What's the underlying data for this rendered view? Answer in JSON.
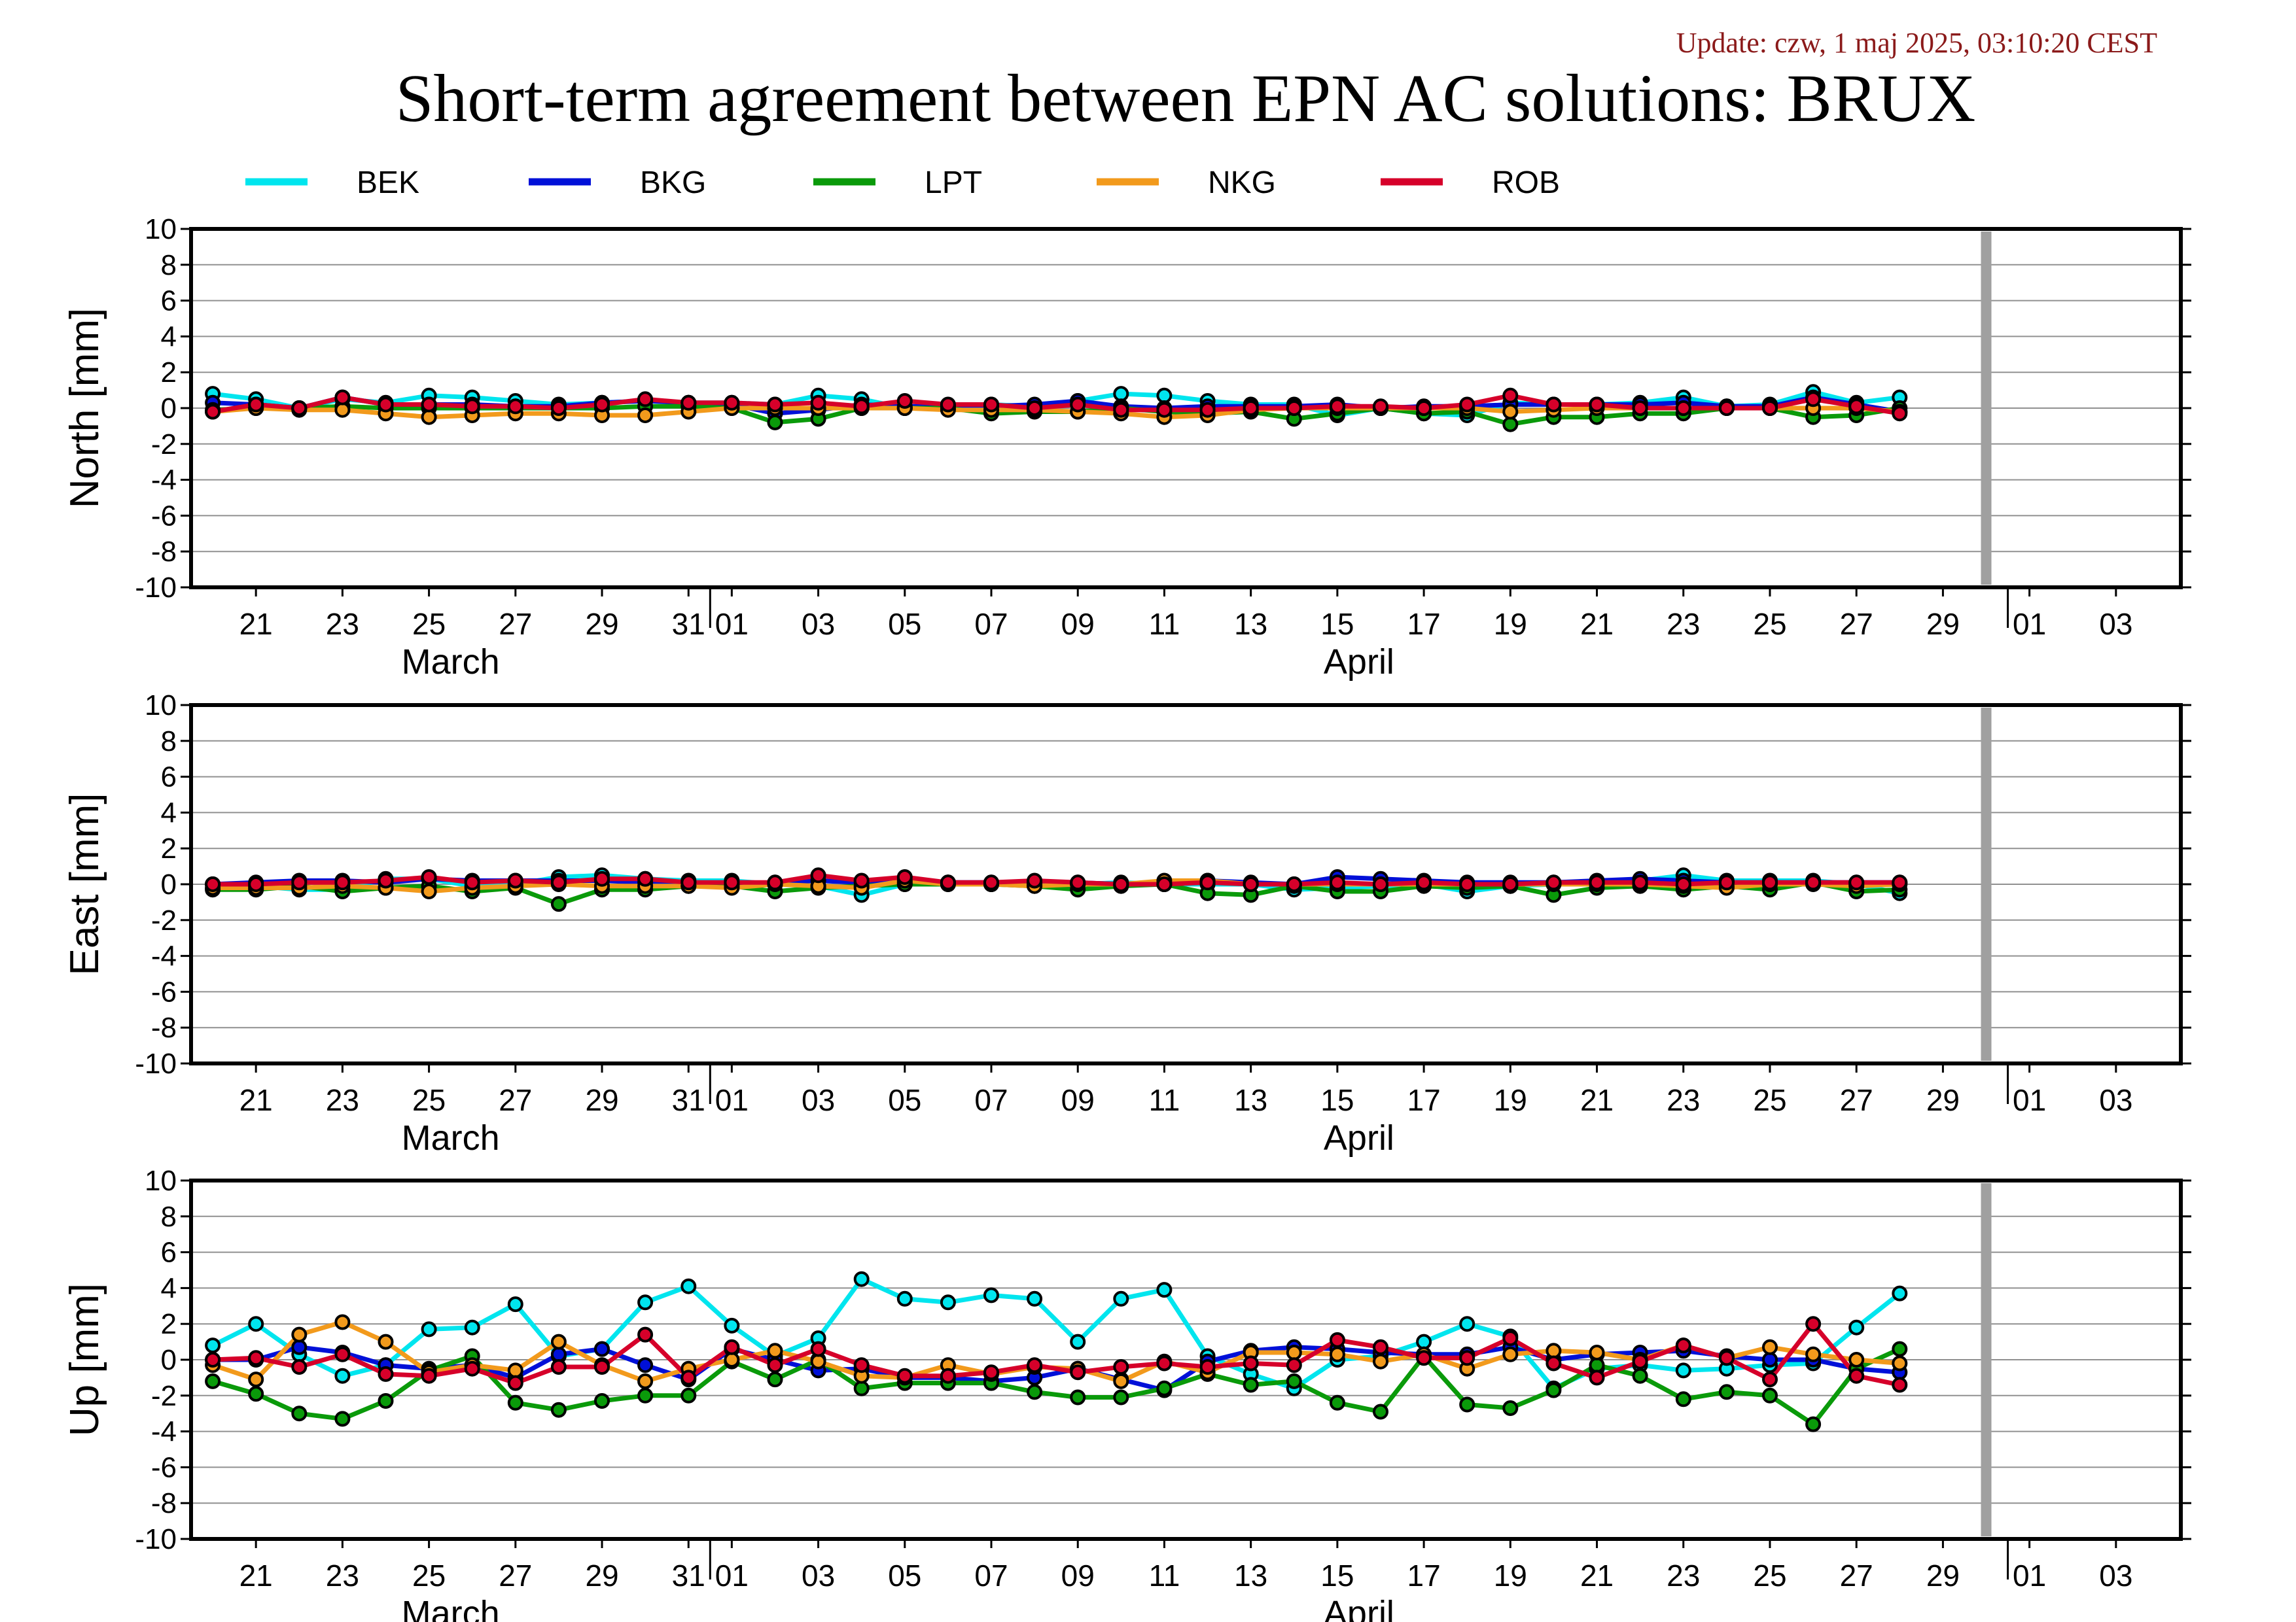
{
  "update_text": "Update: czw, 1 maj 2025, 03:10:20 CEST",
  "title": "Short-term agreement between EPN AC solutions: BRUX",
  "colors": {
    "BEK": "#00e5ee",
    "BKG": "#0010d8",
    "LPT": "#0a9a0a",
    "NKG": "#f29a1c",
    "ROB": "#d6002a",
    "update": "#8b1a1a",
    "gap_bar": "#a0a0a0"
  },
  "legend": [
    {
      "key": "BEK",
      "label": "BEK"
    },
    {
      "key": "BKG",
      "label": "BKG"
    },
    {
      "key": "LPT",
      "label": "LPT"
    },
    {
      "key": "NKG",
      "label": "NKG"
    },
    {
      "key": "ROB",
      "label": "ROB"
    }
  ],
  "x_axis": {
    "ticks": [
      {
        "label": "21",
        "day": 1
      },
      {
        "label": "23",
        "day": 3
      },
      {
        "label": "25",
        "day": 5
      },
      {
        "label": "27",
        "day": 7
      },
      {
        "label": "29",
        "day": 9
      },
      {
        "label": "31",
        "day": 11
      },
      {
        "label": "01",
        "day": 12
      },
      {
        "label": "03",
        "day": 14
      },
      {
        "label": "05",
        "day": 16
      },
      {
        "label": "07",
        "day": 18
      },
      {
        "label": "09",
        "day": 20
      },
      {
        "label": "11",
        "day": 22
      },
      {
        "label": "13",
        "day": 24
      },
      {
        "label": "15",
        "day": 26
      },
      {
        "label": "17",
        "day": 28
      },
      {
        "label": "19",
        "day": 30
      },
      {
        "label": "21",
        "day": 32
      },
      {
        "label": "23",
        "day": 34
      },
      {
        "label": "25",
        "day": 36
      },
      {
        "label": "27",
        "day": 38
      },
      {
        "label": "29",
        "day": 40
      },
      {
        "label": "01",
        "day": 42
      },
      {
        "label": "03",
        "day": 44
      }
    ],
    "months": [
      {
        "label": "March",
        "day": 5.5
      },
      {
        "label": "April",
        "day": 26.5
      }
    ],
    "month_boundaries": [
      11.5,
      41.5
    ],
    "range": [
      -0.5,
      45.5
    ],
    "gap_day": 41
  },
  "chart_data": [
    {
      "type": "line",
      "ylabel": "North [mm]",
      "ylim": [
        -10,
        10
      ],
      "yticks": [
        10,
        8,
        6,
        4,
        2,
        0,
        -2,
        -4,
        -6,
        -8,
        -10
      ],
      "grid": true,
      "x": [
        0,
        1,
        2,
        3,
        4,
        5,
        6,
        7,
        8,
        9,
        10,
        11,
        12,
        13,
        14,
        15,
        16,
        17,
        18,
        19,
        20,
        21,
        22,
        23,
        24,
        25,
        26,
        27,
        28,
        29,
        30,
        31,
        32,
        33,
        34,
        35,
        36,
        37,
        38,
        39,
        40
      ],
      "series": [
        {
          "name": "BEK",
          "values": [
            0.8,
            0.5,
            0.0,
            0.5,
            0.3,
            0.7,
            0.6,
            0.4,
            0.2,
            0.3,
            0.4,
            0.3,
            0.3,
            0.2,
            0.7,
            0.5,
            0.0,
            0.1,
            0.2,
            0.1,
            0.4,
            0.8,
            0.7,
            0.4,
            0.2,
            0.2,
            -0.4,
            0.0,
            -0.3,
            -0.4,
            0.3,
            0.2,
            0.2,
            0.3,
            0.6,
            0.1,
            0.2,
            0.9,
            0.3,
            0.6,
            null
          ]
        },
        {
          "name": "BKG",
          "values": [
            0.3,
            0.2,
            0.0,
            0.6,
            0.2,
            0.2,
            0.2,
            0.1,
            0.1,
            0.3,
            0.4,
            0.3,
            0.2,
            -0.3,
            -0.1,
            0.2,
            0.1,
            0.1,
            0.1,
            0.2,
            0.4,
            0.1,
            0.0,
            0.1,
            0.1,
            0.1,
            0.2,
            0.0,
            0.1,
            0.1,
            0.2,
            0.2,
            0.2,
            0.2,
            0.3,
            0.1,
            0.1,
            0.6,
            0.2,
            -0.2,
            null
          ]
        },
        {
          "name": "LPT",
          "values": [
            -0.1,
            0.0,
            0.0,
            0.1,
            0.0,
            0.0,
            0.0,
            0.0,
            0.0,
            0.0,
            0.1,
            0.1,
            0.0,
            -0.8,
            -0.6,
            0.0,
            0.0,
            0.0,
            -0.3,
            -0.2,
            -0.2,
            0.0,
            -0.2,
            -0.3,
            -0.2,
            -0.6,
            -0.3,
            0.0,
            -0.3,
            -0.2,
            -0.9,
            -0.5,
            -0.5,
            -0.3,
            -0.3,
            0.0,
            0.0,
            -0.5,
            -0.4,
            0.0,
            null
          ]
        },
        {
          "name": "NKG",
          "values": [
            -0.2,
            0.0,
            -0.1,
            -0.1,
            -0.3,
            -0.5,
            -0.4,
            -0.3,
            -0.3,
            -0.4,
            -0.4,
            -0.2,
            0.0,
            0.0,
            0.0,
            0.0,
            0.0,
            -0.1,
            -0.1,
            -0.1,
            -0.2,
            -0.3,
            -0.5,
            -0.4,
            -0.1,
            0.0,
            0.0,
            0.0,
            0.0,
            0.0,
            -0.2,
            -0.1,
            0.0,
            0.0,
            0.0,
            0.0,
            0.0,
            0.0,
            0.0,
            -0.2,
            null
          ]
        },
        {
          "name": "ROB",
          "values": [
            -0.2,
            0.2,
            0.0,
            0.6,
            0.2,
            0.2,
            0.1,
            0.1,
            0.0,
            0.2,
            0.5,
            0.3,
            0.3,
            0.2,
            0.3,
            0.1,
            0.4,
            0.2,
            0.2,
            0.0,
            0.2,
            -0.1,
            -0.1,
            -0.1,
            0.0,
            0.0,
            0.1,
            0.1,
            0.0,
            0.2,
            0.7,
            0.2,
            0.2,
            0.0,
            0.0,
            0.0,
            0.0,
            0.5,
            0.1,
            -0.3,
            null
          ]
        }
      ]
    },
    {
      "type": "line",
      "ylabel": "East [mm]",
      "ylim": [
        -10,
        10
      ],
      "yticks": [
        10,
        8,
        6,
        4,
        2,
        0,
        -2,
        -4,
        -6,
        -8,
        -10
      ],
      "grid": true,
      "x": [
        0,
        1,
        2,
        3,
        4,
        5,
        6,
        7,
        8,
        9,
        10,
        11,
        12,
        13,
        14,
        15,
        16,
        17,
        18,
        19,
        20,
        21,
        22,
        23,
        24,
        25,
        26,
        27,
        28,
        29,
        30,
        31,
        32,
        33,
        34,
        35,
        36,
        37,
        38,
        39,
        40
      ],
      "series": [
        {
          "name": "BEK",
          "values": [
            0.0,
            -0.1,
            -0.3,
            -0.3,
            0.3,
            0.3,
            -0.1,
            0.0,
            0.4,
            0.5,
            0.3,
            0.2,
            0.2,
            0.0,
            -0.1,
            -0.6,
            0.0,
            0.1,
            0.0,
            0.0,
            0.0,
            0.1,
            0.0,
            0.0,
            0.0,
            -0.3,
            -0.2,
            -0.1,
            0.0,
            -0.4,
            -0.1,
            0.0,
            0.1,
            0.2,
            0.5,
            0.2,
            0.2,
            0.2,
            0.0,
            -0.5,
            null
          ]
        },
        {
          "name": "BKG",
          "values": [
            0.0,
            0.1,
            0.2,
            0.2,
            0.1,
            0.3,
            0.2,
            0.2,
            0.2,
            0.2,
            0.1,
            0.1,
            0.0,
            0.1,
            0.2,
            0.1,
            0.1,
            0.1,
            0.1,
            0.1,
            0.1,
            0.0,
            0.0,
            0.2,
            0.1,
            0.0,
            0.4,
            0.3,
            0.2,
            0.1,
            0.1,
            0.1,
            0.2,
            0.3,
            0.2,
            0.1,
            0.1,
            0.1,
            0.1,
            0.1,
            null
          ]
        },
        {
          "name": "LPT",
          "values": [
            -0.3,
            -0.3,
            -0.1,
            -0.4,
            -0.2,
            -0.1,
            -0.4,
            -0.2,
            -1.1,
            -0.3,
            -0.3,
            -0.1,
            -0.1,
            -0.4,
            -0.2,
            -0.1,
            0.0,
            0.0,
            0.0,
            -0.1,
            -0.3,
            -0.1,
            0.0,
            -0.5,
            -0.6,
            -0.1,
            -0.4,
            -0.4,
            -0.1,
            -0.2,
            -0.1,
            -0.6,
            -0.2,
            -0.1,
            -0.3,
            -0.1,
            -0.3,
            0.1,
            -0.4,
            -0.3,
            null
          ]
        },
        {
          "name": "NKG",
          "values": [
            -0.2,
            -0.2,
            -0.2,
            -0.1,
            -0.2,
            -0.4,
            -0.2,
            -0.1,
            0.0,
            -0.1,
            -0.1,
            -0.1,
            -0.2,
            0.0,
            -0.1,
            -0.2,
            0.2,
            0.0,
            0.0,
            -0.1,
            0.0,
            0.0,
            0.2,
            0.2,
            0.0,
            0.0,
            0.0,
            0.0,
            0.0,
            0.0,
            0.0,
            0.0,
            0.0,
            0.0,
            -0.1,
            -0.2,
            0.0,
            0.0,
            -0.1,
            0.0,
            null
          ]
        },
        {
          "name": "ROB",
          "values": [
            0.0,
            0.0,
            0.1,
            0.1,
            0.2,
            0.4,
            0.1,
            0.2,
            0.1,
            0.3,
            0.3,
            0.1,
            0.1,
            0.1,
            0.5,
            0.2,
            0.4,
            0.1,
            0.1,
            0.2,
            0.1,
            0.0,
            0.0,
            0.1,
            0.0,
            0.0,
            0.1,
            0.0,
            0.1,
            0.0,
            0.0,
            0.1,
            0.1,
            0.1,
            0.0,
            0.1,
            0.1,
            0.1,
            0.1,
            0.1,
            null
          ]
        }
      ]
    },
    {
      "type": "line",
      "ylabel": "Up [mm]",
      "ylim": [
        -10,
        10
      ],
      "yticks": [
        10,
        8,
        6,
        4,
        2,
        0,
        -2,
        -4,
        -6,
        -8,
        -10
      ],
      "grid": true,
      "x": [
        0,
        1,
        2,
        3,
        4,
        5,
        6,
        7,
        8,
        9,
        10,
        11,
        12,
        13,
        14,
        15,
        16,
        17,
        18,
        19,
        20,
        21,
        22,
        23,
        24,
        25,
        26,
        27,
        28,
        29,
        30,
        31,
        32,
        33,
        34,
        35,
        36,
        37,
        38,
        39,
        40
      ],
      "series": [
        {
          "name": "BEK",
          "values": [
            0.8,
            2.0,
            0.3,
            -0.9,
            -0.3,
            1.7,
            1.8,
            3.1,
            0.2,
            0.6,
            3.2,
            4.1,
            1.9,
            0.2,
            1.2,
            4.5,
            3.4,
            3.2,
            3.6,
            3.4,
            1.0,
            3.4,
            3.9,
            0.2,
            -0.8,
            -1.6,
            0.0,
            0.2,
            1.0,
            2.0,
            1.3,
            -1.6,
            -0.5,
            -0.3,
            -0.6,
            -0.5,
            -0.3,
            -0.2,
            1.8,
            3.7,
            null
          ]
        },
        {
          "name": "BKG",
          "values": [
            0.0,
            0.0,
            0.7,
            0.4,
            -0.3,
            -0.5,
            -0.3,
            -1.0,
            0.3,
            0.6,
            -0.3,
            -1.1,
            0.6,
            0.0,
            -0.6,
            -0.5,
            -1.0,
            -1.0,
            -1.2,
            -1.0,
            -0.5,
            -1.1,
            -1.7,
            -0.1,
            0.5,
            0.7,
            0.6,
            0.4,
            0.3,
            0.3,
            0.7,
            0.0,
            0.3,
            0.4,
            0.5,
            0.2,
            0.0,
            0.0,
            -0.5,
            -0.7,
            null
          ]
        },
        {
          "name": "LPT",
          "values": [
            -1.2,
            -1.9,
            -3.0,
            -3.3,
            -2.3,
            -0.6,
            0.2,
            -2.4,
            -2.8,
            -2.3,
            -2.0,
            -2.0,
            -0.1,
            -1.1,
            0.0,
            -1.6,
            -1.3,
            -1.3,
            -1.3,
            -1.8,
            -2.1,
            -2.1,
            -1.6,
            -0.8,
            -1.4,
            -1.2,
            -2.4,
            -2.9,
            0.2,
            -2.5,
            -2.7,
            -1.7,
            -0.3,
            -0.9,
            -2.2,
            -1.8,
            -2.0,
            -3.6,
            -0.5,
            0.6,
            null
          ]
        },
        {
          "name": "NKG",
          "values": [
            -0.3,
            -1.1,
            1.4,
            2.1,
            1.0,
            -0.7,
            -0.3,
            -0.6,
            1.0,
            -0.3,
            -1.2,
            -0.5,
            0.0,
            0.5,
            -0.1,
            -0.9,
            -1.0,
            -0.3,
            -0.8,
            -0.4,
            -0.5,
            -1.2,
            -0.1,
            -0.7,
            0.4,
            0.4,
            0.3,
            -0.1,
            0.3,
            -0.5,
            0.3,
            0.5,
            0.4,
            0.0,
            0.8,
            0.1,
            0.7,
            0.3,
            0.0,
            -0.2,
            null
          ]
        },
        {
          "name": "ROB",
          "values": [
            0.0,
            0.1,
            -0.4,
            0.3,
            -0.8,
            -0.9,
            -0.5,
            -1.3,
            -0.4,
            -0.4,
            1.4,
            -1.0,
            0.7,
            -0.3,
            0.6,
            -0.3,
            -0.9,
            -0.9,
            -0.7,
            -0.3,
            -0.7,
            -0.4,
            -0.2,
            -0.4,
            -0.2,
            -0.3,
            1.1,
            0.7,
            0.1,
            0.1,
            1.2,
            -0.2,
            -1.0,
            -0.1,
            0.8,
            0.1,
            -1.1,
            2.0,
            -0.9,
            -1.4,
            null
          ]
        }
      ]
    }
  ]
}
